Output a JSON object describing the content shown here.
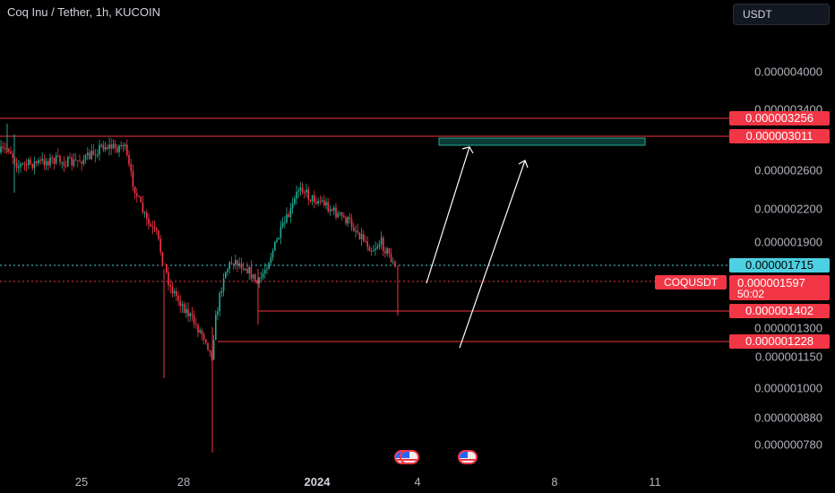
{
  "header": {
    "title": "Coq Inu / Tether, 1h, KUCOIN",
    "currency_button": "USDT"
  },
  "y_axis_ticks": [
    "0.000004000",
    "0.000003400",
    "0.000002600",
    "0.000002200",
    "0.000001900",
    "0.000001300",
    "0.000001150",
    "0.000001000",
    "0.000000880",
    "0.000000780"
  ],
  "x_axis_ticks": [
    {
      "label": "25",
      "bold": false
    },
    {
      "label": "28",
      "bold": false
    },
    {
      "label": "2024",
      "bold": true
    },
    {
      "label": "4",
      "bold": false
    },
    {
      "label": "8",
      "bold": false
    },
    {
      "label": "11",
      "bold": false
    }
  ],
  "price_labels": {
    "resistance_high": "0.000003256",
    "resistance_low": "0.000003011",
    "current_line": "0.000001715",
    "support_high": "0.000001402",
    "support_low": "0.000001228"
  },
  "last_price": {
    "symbol": "COQUSDT",
    "value": "0.000001597",
    "countdown": "50:02"
  },
  "colors": {
    "up": "#22ab94",
    "down": "#f23645",
    "background": "#000000",
    "cyan": "#4dd0e1"
  },
  "events": [
    {
      "icon": "us-flag-icon"
    },
    {
      "icon": "us-flag-icon"
    }
  ],
  "chart_data": {
    "type": "candlestick",
    "symbol": "COQUSDT",
    "interval": "1h",
    "exchange": "KUCOIN",
    "y_scale": "log",
    "horizontal_levels": [
      3.256e-06,
      3.011e-06,
      1.715e-06,
      1.597e-06,
      1.402e-06,
      1.228e-06
    ],
    "target_zone": {
      "low": 2.95e-06,
      "high": 3.011e-06
    },
    "approx_price_path": [
      {
        "x": "25",
        "close": 2.9e-06
      },
      {
        "x": "26",
        "close": 3e-06
      },
      {
        "x": "27",
        "close": 2.1e-06
      },
      {
        "x": "28",
        "close": 1.3e-06
      },
      {
        "x": "29",
        "close": 1.2e-06
      },
      {
        "x": "30",
        "close": 1.6e-06
      },
      {
        "x": "31",
        "close": 1.7e-06
      },
      {
        "x": "2024",
        "close": 2.5e-06
      },
      {
        "x": "2",
        "close": 2.2e-06
      },
      {
        "x": "3",
        "close": 1.8e-06
      },
      {
        "x": "3",
        "close": 1.597e-06
      }
    ]
  }
}
